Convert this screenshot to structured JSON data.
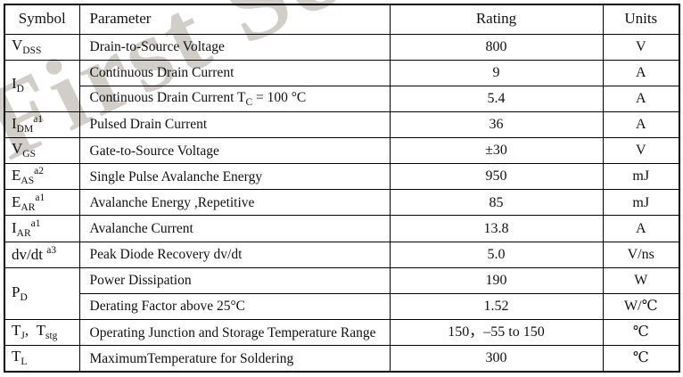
{
  "watermark": {
    "text": "First Se",
    "color": "#c6c2bb"
  },
  "table": {
    "headers": [
      "Symbol",
      "Parameter",
      "Rating",
      "Units"
    ],
    "rows": [
      {
        "symbol": [
          {
            "t": "V"
          },
          {
            "t": "DSS",
            "s": "sub"
          }
        ],
        "symbol_rowspan": 1,
        "parameter": [
          {
            "t": "Drain-to-Source Voltage"
          }
        ],
        "rating": "800",
        "units": "V"
      },
      {
        "symbol": [
          {
            "t": "I"
          },
          {
            "t": "D",
            "s": "sub"
          }
        ],
        "symbol_rowspan": 2,
        "parameter": [
          {
            "t": "Continuous Drain Current"
          }
        ],
        "rating": "9",
        "units": "A"
      },
      {
        "symbol": null,
        "parameter": [
          {
            "t": "Continuous Drain Current T"
          },
          {
            "t": "C",
            "s": "sub"
          },
          {
            "t": " = 100 °C"
          }
        ],
        "rating": "5.4",
        "units": "A"
      },
      {
        "symbol": [
          {
            "t": "I"
          },
          {
            "t": "DM",
            "s": "sub"
          },
          {
            "t": "a1",
            "s": "sup"
          }
        ],
        "symbol_rowspan": 1,
        "parameter": [
          {
            "t": "Pulsed Drain Current"
          }
        ],
        "rating": "36",
        "units": "A"
      },
      {
        "symbol": [
          {
            "t": "V"
          },
          {
            "t": "GS",
            "s": "sub"
          }
        ],
        "symbol_rowspan": 1,
        "parameter": [
          {
            "t": "Gate-to-Source Voltage"
          }
        ],
        "rating": "±30",
        "units": "V"
      },
      {
        "symbol": [
          {
            "t": "E"
          },
          {
            "t": "AS",
            "s": "sub"
          },
          {
            "t": "a2",
            "s": "sup"
          }
        ],
        "symbol_rowspan": 1,
        "parameter": [
          {
            "t": "Single Pulse Avalanche Energy"
          }
        ],
        "rating": "950",
        "units": "mJ"
      },
      {
        "symbol": [
          {
            "t": "E"
          },
          {
            "t": "AR",
            "s": "sub"
          },
          {
            "t": "a1",
            "s": "sup"
          }
        ],
        "symbol_rowspan": 1,
        "parameter": [
          {
            "t": "Avalanche Energy ,Repetitive"
          }
        ],
        "rating": "85",
        "units": "mJ"
      },
      {
        "symbol": [
          {
            "t": "I"
          },
          {
            "t": "AR",
            "s": "sub"
          },
          {
            "t": "a1",
            "s": "sup"
          }
        ],
        "symbol_rowspan": 1,
        "parameter": [
          {
            "t": "Avalanche Current"
          }
        ],
        "rating": "13.8",
        "units": "A"
      },
      {
        "symbol": [
          {
            "t": "dv/dt "
          },
          {
            "t": "a3",
            "s": "sup"
          }
        ],
        "symbol_rowspan": 1,
        "parameter": [
          {
            "t": "Peak Diode Recovery dv/dt"
          }
        ],
        "rating": "5.0",
        "units": "V/ns"
      },
      {
        "symbol": [
          {
            "t": "P"
          },
          {
            "t": "D",
            "s": "sub"
          }
        ],
        "symbol_rowspan": 2,
        "parameter": [
          {
            "t": "Power Dissipation"
          }
        ],
        "rating": "190",
        "units": "W"
      },
      {
        "symbol": null,
        "parameter": [
          {
            "t": "Derating Factor above 25°C"
          }
        ],
        "rating": "1.52",
        "units": "W/℃"
      },
      {
        "symbol": [
          {
            "t": "T"
          },
          {
            "t": "J",
            "s": "sub"
          },
          {
            "t": ",  "
          },
          {
            "t": "T"
          },
          {
            "t": "stg",
            "s": "sub"
          }
        ],
        "symbol_rowspan": 1,
        "parameter": [
          {
            "t": "Operating Junction and Storage Temperature Range"
          }
        ],
        "rating": "150，–55 to 150",
        "units": "℃"
      },
      {
        "symbol": [
          {
            "t": "T"
          },
          {
            "t": "L",
            "s": "sub"
          }
        ],
        "symbol_rowspan": 1,
        "parameter": [
          {
            "t": "MaximumTemperature for Soldering"
          }
        ],
        "rating": "300",
        "units": "℃"
      }
    ]
  }
}
